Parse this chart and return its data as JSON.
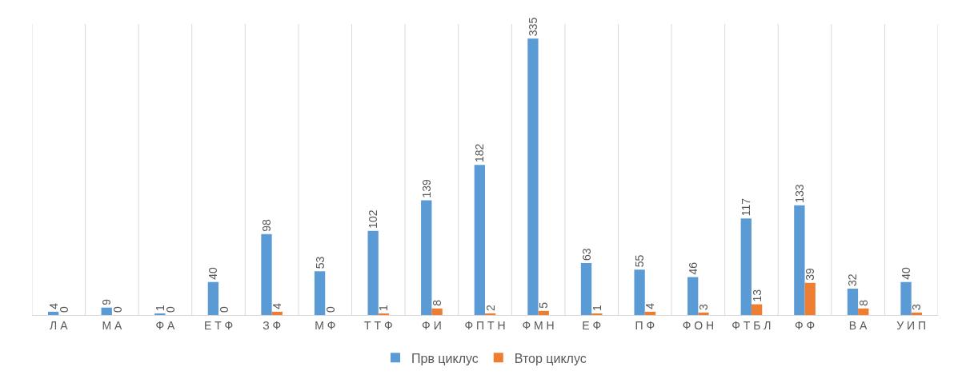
{
  "chart_data": {
    "type": "bar",
    "categories": [
      "Л А",
      "М А",
      "Ф А",
      "Е Т Ф",
      "З Ф",
      "М Ф",
      "Т Т Ф",
      "Ф И",
      "Ф П Т Н",
      "Ф М Н",
      "Е Ф",
      "П Ф",
      "Ф О Н",
      "Ф Т Б Л",
      "Ф Ф",
      "В А",
      "У И П"
    ],
    "series": [
      {
        "name": "Прв циклус",
        "color": "#5b9bd5",
        "values": [
          4,
          9,
          1,
          40,
          98,
          53,
          102,
          139,
          182,
          335,
          63,
          55,
          46,
          117,
          133,
          32,
          40
        ]
      },
      {
        "name": "Втор циклус",
        "color": "#ed7d31",
        "values": [
          0,
          0,
          0,
          0,
          4,
          0,
          1,
          8,
          2,
          5,
          1,
          4,
          3,
          13,
          39,
          8,
          3
        ]
      }
    ],
    "data_labels": true,
    "grid": "x",
    "legend": "bottom"
  }
}
